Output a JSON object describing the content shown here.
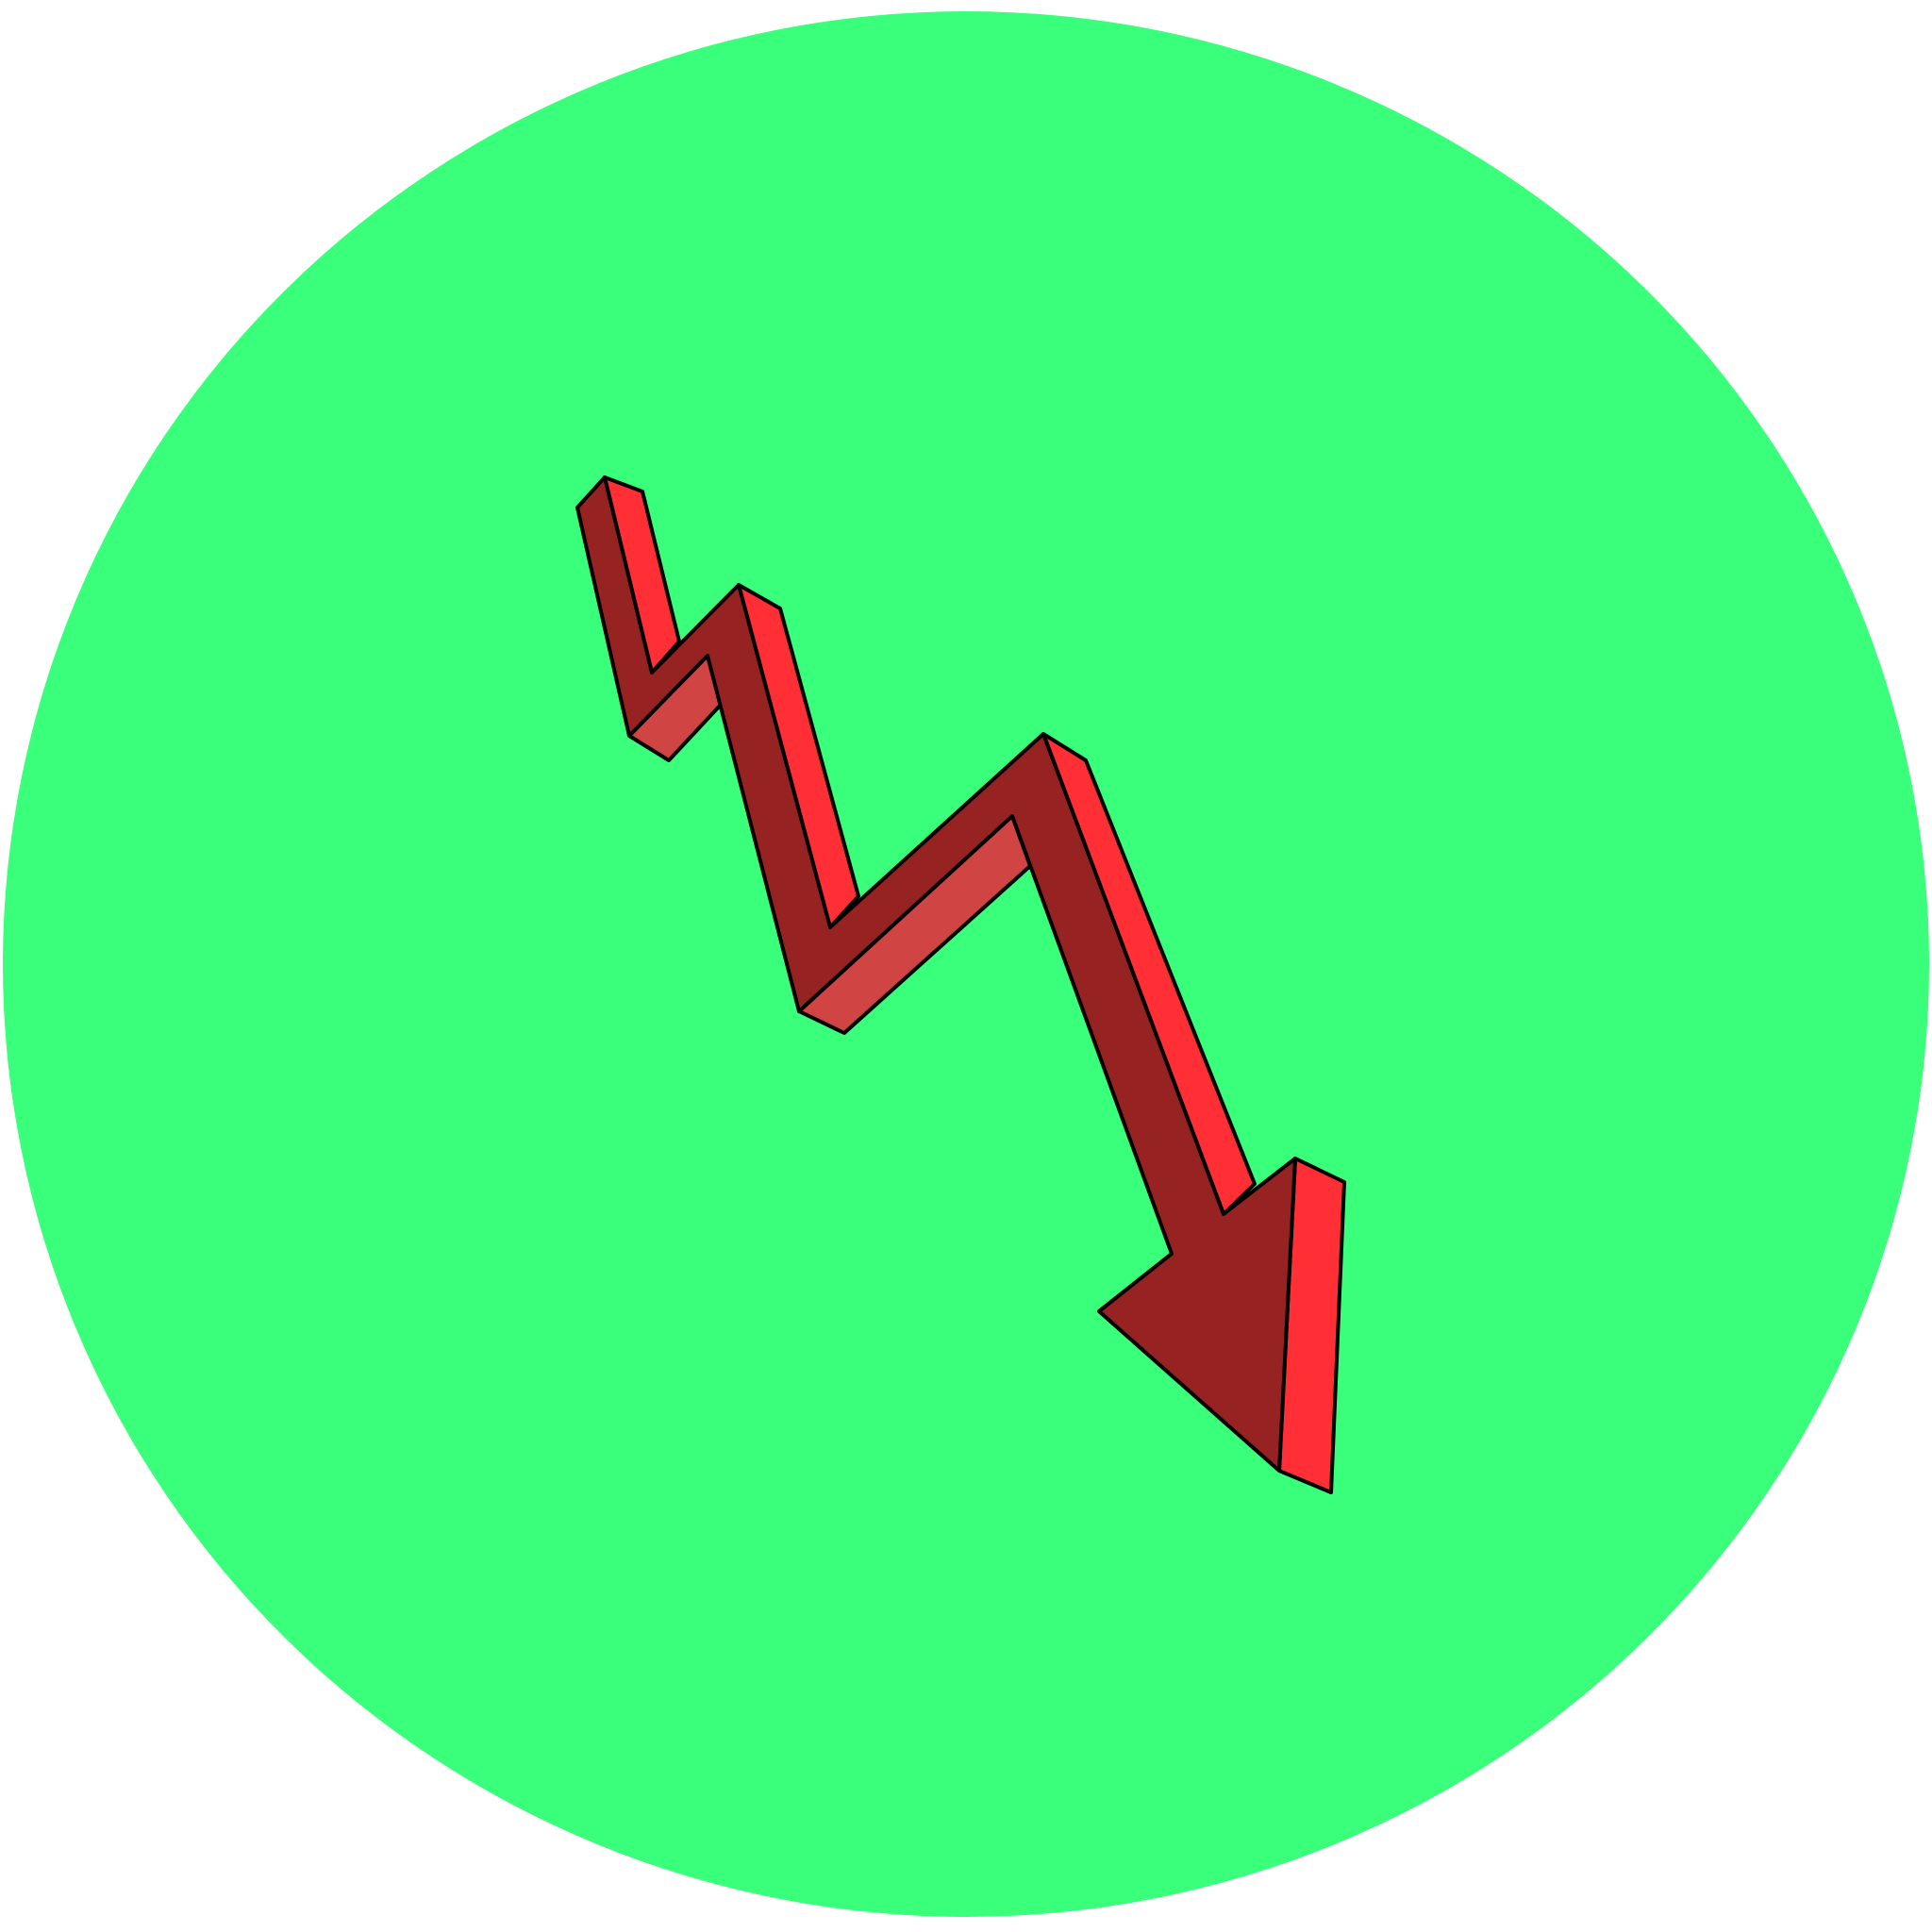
{
  "icon": {
    "name": "downward-trend-arrow-icon",
    "shape": "zigzag 3d arrow pointing down-right"
  },
  "colors": {
    "page_background": "#ffffff",
    "circle_fill": "#3aff7a",
    "arrow_front": "#962222",
    "arrow_side": "#ff2f35",
    "arrow_bevel": "#d04444",
    "outline": "#000000"
  }
}
